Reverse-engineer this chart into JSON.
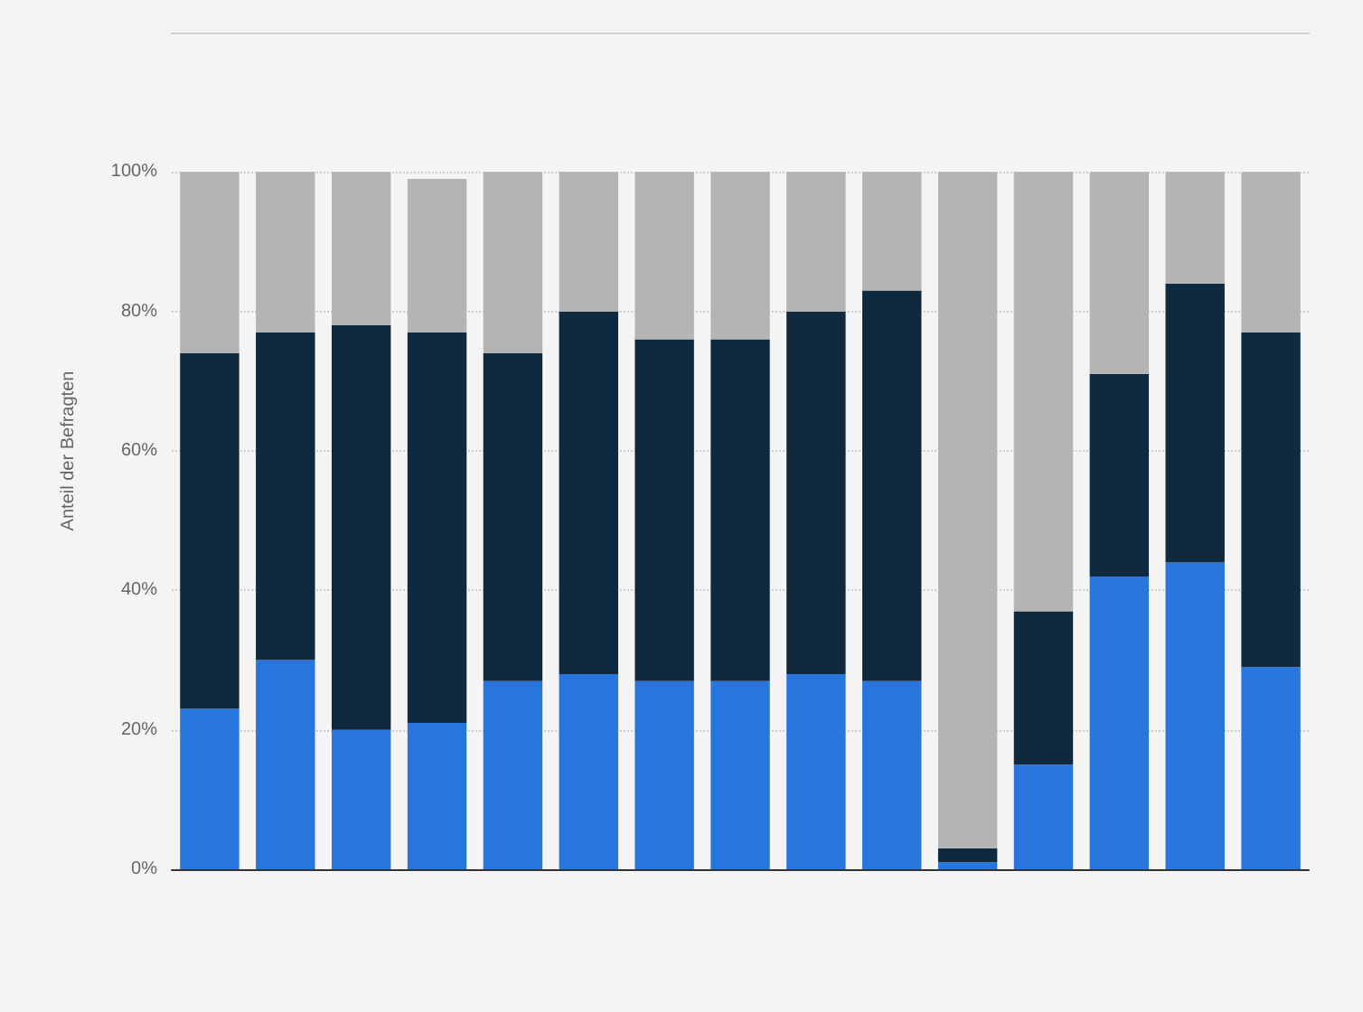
{
  "chart_data": {
    "type": "bar",
    "stacked": true,
    "ylabel": "Anteil der Befragten",
    "categories": [
      null,
      null,
      null,
      null,
      null,
      null,
      null,
      null,
      null,
      null,
      null,
      null,
      null,
      null,
      null
    ],
    "series": [
      {
        "color": "#2876dd",
        "values": [
          23,
          30,
          20,
          21,
          27,
          28,
          27,
          27,
          28,
          27,
          1,
          15,
          42,
          44,
          29
        ]
      },
      {
        "color": "#0f2a3f",
        "values": [
          51,
          47,
          58,
          56,
          47,
          52,
          49,
          49,
          52,
          56,
          2,
          22,
          29,
          40,
          48
        ]
      },
      {
        "color": "#b4b4b4",
        "values": [
          26,
          23,
          22,
          22,
          26,
          20,
          24,
          24,
          20,
          17,
          97,
          63,
          29,
          16,
          23
        ]
      }
    ],
    "ylim": [
      0,
      120
    ],
    "yticks": [
      {
        "value": 0,
        "label": "0%"
      },
      {
        "value": 20,
        "label": "20%"
      },
      {
        "value": 40,
        "label": "40%"
      },
      {
        "value": 60,
        "label": "60%"
      },
      {
        "value": 80,
        "label": "80%"
      },
      {
        "value": 100,
        "label": "100%"
      }
    ],
    "grid": "y"
  }
}
